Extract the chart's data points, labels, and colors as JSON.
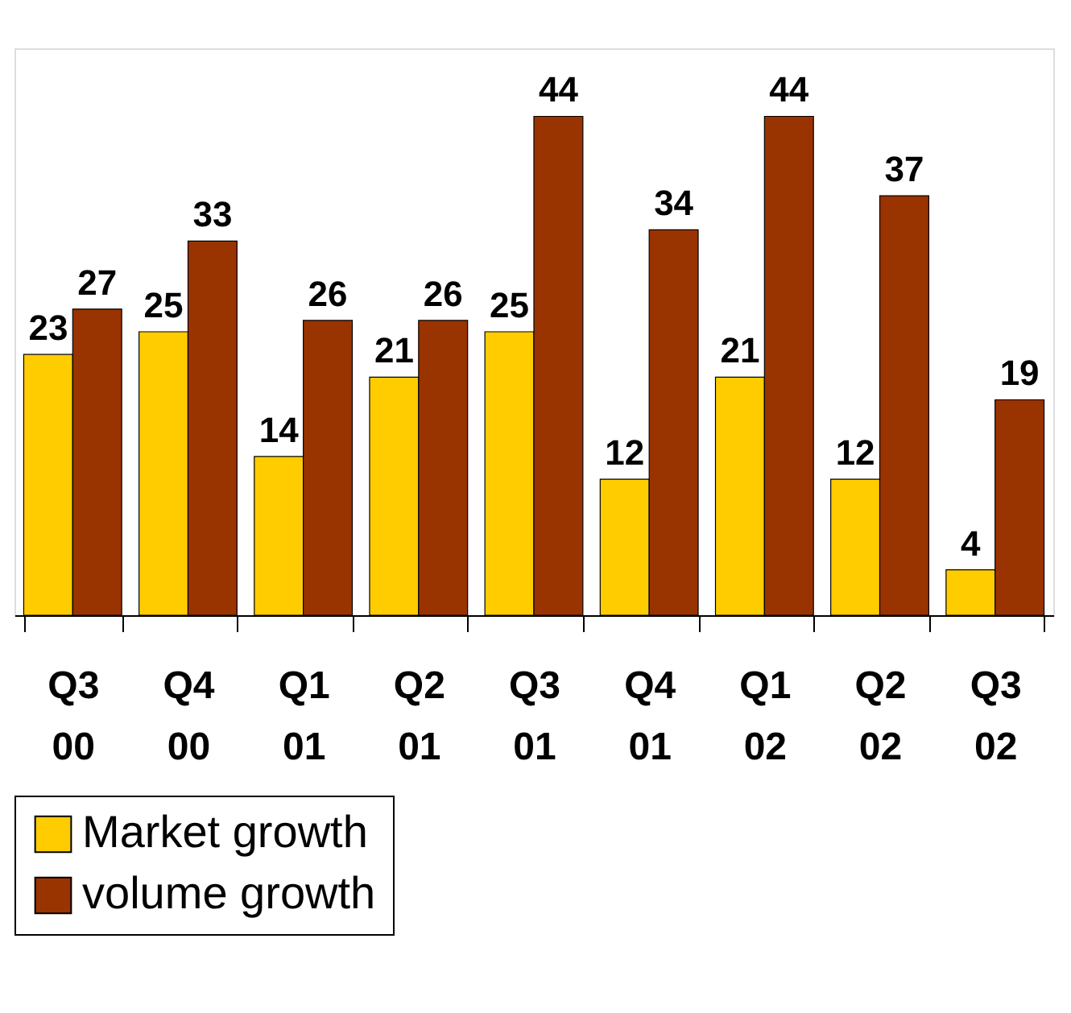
{
  "chart_data": {
    "type": "bar",
    "categories": [
      "Q3 00",
      "Q4 00",
      "Q1 01",
      "Q2 01",
      "Q3 01",
      "Q4 01",
      "Q1 02",
      "Q2 02",
      "Q3 02"
    ],
    "series": [
      {
        "name": "Market growth",
        "color": "#ffcc00",
        "values": [
          23,
          25,
          14,
          21,
          25,
          12,
          21,
          12,
          4
        ]
      },
      {
        "name": "volume growth",
        "color": "#993300",
        "values": [
          27,
          33,
          26,
          26,
          44,
          34,
          44,
          37,
          19
        ]
      }
    ],
    "ylim": [
      0,
      50
    ],
    "tick_labels": "x",
    "data_labels": true,
    "legend": "bottom",
    "grid": false
  }
}
